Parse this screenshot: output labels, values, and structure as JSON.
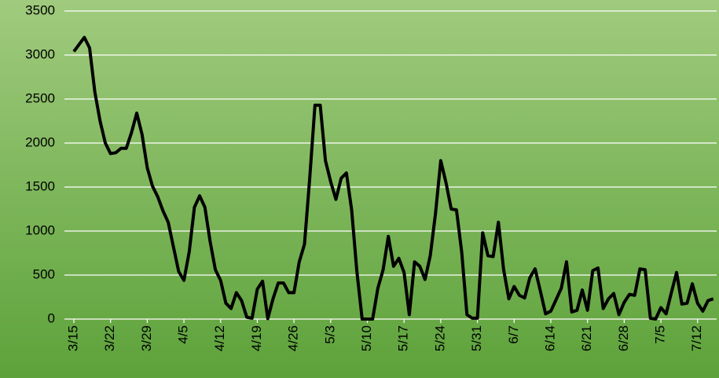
{
  "chart_data": {
    "type": "line",
    "categories": [
      "3/15",
      null,
      null,
      null,
      null,
      null,
      null,
      "3/22",
      null,
      null,
      null,
      null,
      null,
      null,
      "3/29",
      null,
      null,
      null,
      null,
      null,
      null,
      "4/5",
      null,
      null,
      null,
      null,
      null,
      null,
      "4/12",
      null,
      null,
      null,
      null,
      null,
      null,
      "4/19",
      null,
      null,
      null,
      null,
      null,
      null,
      "4/26",
      null,
      null,
      null,
      null,
      null,
      null,
      "5/3",
      null,
      null,
      null,
      null,
      null,
      null,
      "5/10",
      null,
      null,
      null,
      null,
      null,
      null,
      "5/17",
      null,
      null,
      null,
      null,
      null,
      null,
      "5/24",
      null,
      null,
      null,
      null,
      null,
      null,
      "5/31",
      null,
      null,
      null,
      null,
      null,
      null,
      "6/7",
      null,
      null,
      null,
      null,
      null,
      null,
      "6/14",
      null,
      null,
      null,
      null,
      null,
      null,
      "6/21",
      null,
      null,
      null,
      null,
      null,
      null,
      "6/28",
      null,
      null,
      null,
      null,
      null,
      null,
      "7/5",
      null,
      null,
      null,
      null,
      null,
      null,
      "7/12",
      null,
      null,
      null
    ],
    "values": [
      3040,
      3120,
      3200,
      3080,
      2580,
      2250,
      2000,
      1880,
      1890,
      1940,
      1940,
      2120,
      2340,
      2100,
      1720,
      1510,
      1390,
      1230,
      1100,
      820,
      540,
      440,
      760,
      1270,
      1400,
      1270,
      880,
      560,
      440,
      180,
      120,
      300,
      210,
      20,
      10,
      340,
      430,
      5,
      230,
      410,
      410,
      300,
      300,
      650,
      850,
      1600,
      2430,
      2430,
      1800,
      1560,
      1360,
      1600,
      1660,
      1240,
      540,
      0,
      0,
      0,
      350,
      560,
      940,
      600,
      690,
      530,
      50,
      650,
      600,
      450,
      720,
      1200,
      1800,
      1550,
      1250,
      1240,
      760,
      50,
      10,
      10,
      980,
      720,
      710,
      1100,
      560,
      230,
      370,
      270,
      240,
      470,
      570,
      320,
      60,
      90,
      220,
      350,
      650,
      80,
      100,
      330,
      100,
      550,
      580,
      120,
      230,
      290,
      50,
      190,
      280,
      270,
      570,
      560,
      10,
      0,
      130,
      60,
      300,
      530,
      170,
      180,
      400,
      180,
      90,
      210,
      230
    ],
    "color": "#000000",
    "ylim": [
      0,
      3500
    ],
    "yticks": [
      0,
      500,
      1000,
      1500,
      2000,
      2500,
      3000,
      3500
    ],
    "grid": true
  }
}
